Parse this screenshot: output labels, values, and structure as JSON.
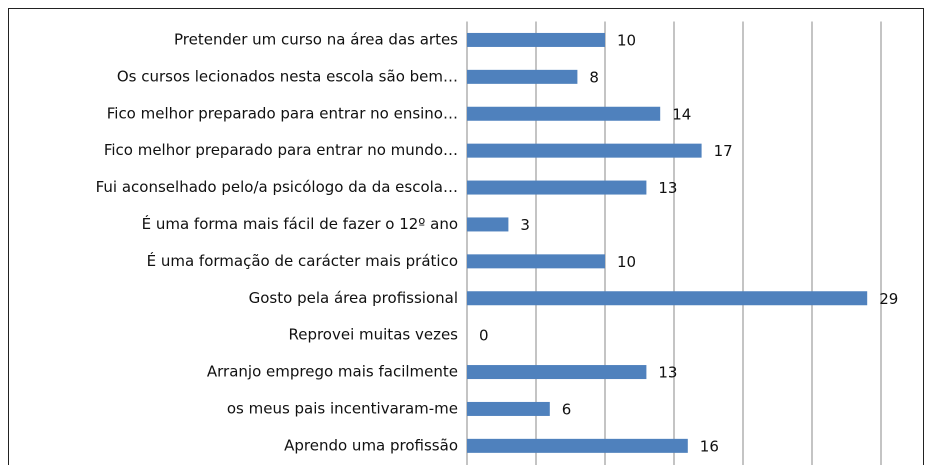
{
  "chart_data": {
    "type": "bar",
    "orientation": "horizontal",
    "categories": [
      "Pretender um curso na área das artes",
      "Os cursos lecionados nesta escola são bem…",
      "Fico melhor preparado para entrar no ensino…",
      "Fico melhor preparado para entrar no mundo…",
      "Fui aconselhado pelo/a psicólogo da da escola…",
      "É uma forma mais fácil de fazer o 12º ano",
      "É uma formação de carácter mais prático",
      "Gosto pela área profissional",
      "Reprovei muitas vezes",
      "Arranjo emprego mais facilmente",
      "os meus pais incentivaram-me",
      "Aprendo uma profissão"
    ],
    "values": [
      10,
      8,
      14,
      17,
      13,
      3,
      10,
      29,
      0,
      13,
      6,
      16
    ],
    "color": "#4f81bd",
    "xlim": [
      0,
      30
    ],
    "xticks": [
      0,
      5,
      10,
      15,
      20,
      25,
      30
    ],
    "grid": true
  }
}
